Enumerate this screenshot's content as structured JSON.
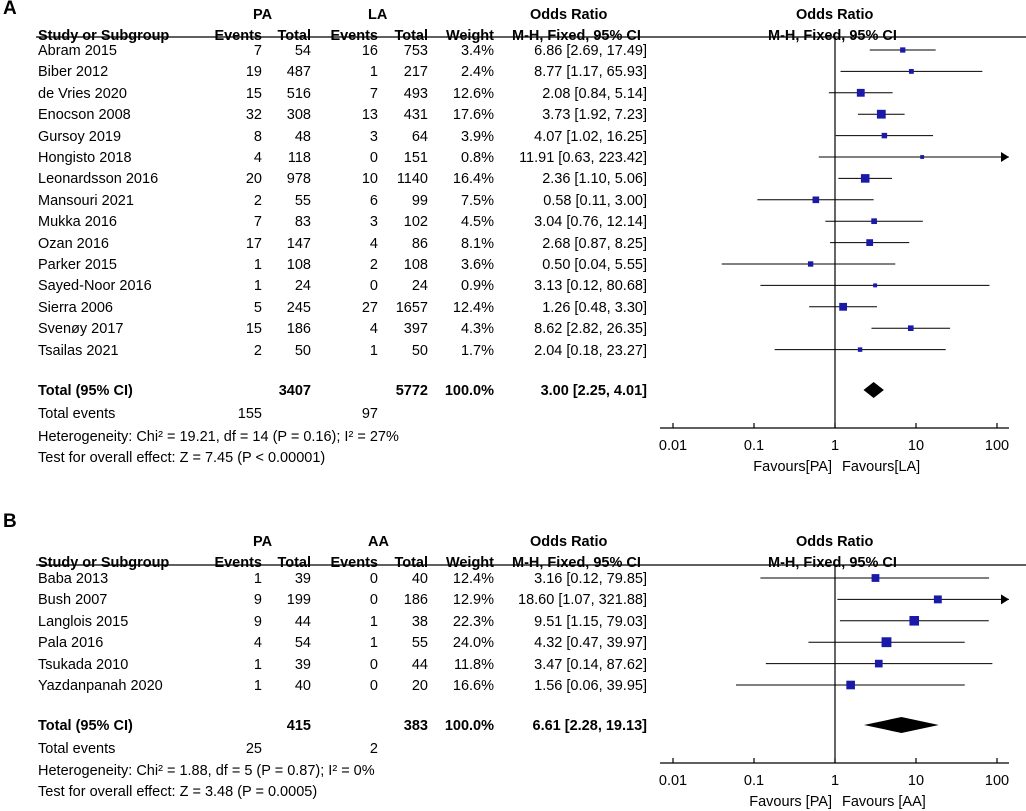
{
  "chart_data": [
    {
      "type": "forest",
      "panel": "A",
      "group1": "PA",
      "group2": "LA",
      "headers": {
        "study": "Study or Subgroup",
        "events": "Events",
        "total": "Total",
        "weight": "Weight",
        "or_title": "Odds Ratio",
        "or_method": "M-H, Fixed, 95% CI",
        "plot_title": "Odds Ratio",
        "plot_method": "M-H, Fixed, 95% CI"
      },
      "studies": [
        {
          "name": "Abram 2015",
          "e1": "7",
          "n1": "54",
          "e2": "16",
          "n2": "753",
          "weight": "3.4%",
          "or_text": "6.86 [2.69, 17.49]",
          "or": 6.86,
          "lo": 2.69,
          "hi": 17.49,
          "w": 3.4
        },
        {
          "name": "Biber 2012",
          "e1": "19",
          "n1": "487",
          "e2": "1",
          "n2": "217",
          "weight": "2.4%",
          "or_text": "8.77 [1.17, 65.93]",
          "or": 8.77,
          "lo": 1.17,
          "hi": 65.93,
          "w": 2.4
        },
        {
          "name": "de Vries 2020",
          "e1": "15",
          "n1": "516",
          "e2": "7",
          "n2": "493",
          "weight": "12.6%",
          "or_text": "2.08 [0.84, 5.14]",
          "or": 2.08,
          "lo": 0.84,
          "hi": 5.14,
          "w": 12.6
        },
        {
          "name": "Enocson 2008",
          "e1": "32",
          "n1": "308",
          "e2": "13",
          "n2": "431",
          "weight": "17.6%",
          "or_text": "3.73 [1.92, 7.23]",
          "or": 3.73,
          "lo": 1.92,
          "hi": 7.23,
          "w": 17.6
        },
        {
          "name": "Gursoy 2019",
          "e1": "8",
          "n1": "48",
          "e2": "3",
          "n2": "64",
          "weight": "3.9%",
          "or_text": "4.07 [1.02, 16.25]",
          "or": 4.07,
          "lo": 1.02,
          "hi": 16.25,
          "w": 3.9
        },
        {
          "name": "Hongisto 2018",
          "e1": "4",
          "n1": "118",
          "e2": "0",
          "n2": "151",
          "weight": "0.8%",
          "or_text": "11.91 [0.63, 223.42]",
          "or": 11.91,
          "lo": 0.63,
          "hi": 223.42,
          "w": 0.8
        },
        {
          "name": "Leonardsson 2016",
          "e1": "20",
          "n1": "978",
          "e2": "10",
          "n2": "1140",
          "weight": "16.4%",
          "or_text": "2.36 [1.10, 5.06]",
          "or": 2.36,
          "lo": 1.1,
          "hi": 5.06,
          "w": 16.4
        },
        {
          "name": "Mansouri 2021",
          "e1": "2",
          "n1": "55",
          "e2": "6",
          "n2": "99",
          "weight": "7.5%",
          "or_text": "0.58 [0.11, 3.00]",
          "or": 0.58,
          "lo": 0.11,
          "hi": 3.0,
          "w": 7.5
        },
        {
          "name": "Mukka 2016",
          "e1": "7",
          "n1": "83",
          "e2": "3",
          "n2": "102",
          "weight": "4.5%",
          "or_text": "3.04 [0.76, 12.14]",
          "or": 3.04,
          "lo": 0.76,
          "hi": 12.14,
          "w": 4.5
        },
        {
          "name": "Ozan 2016",
          "e1": "17",
          "n1": "147",
          "e2": "4",
          "n2": "86",
          "weight": "8.1%",
          "or_text": "2.68 [0.87, 8.25]",
          "or": 2.68,
          "lo": 0.87,
          "hi": 8.25,
          "w": 8.1
        },
        {
          "name": "Parker 2015",
          "e1": "1",
          "n1": "108",
          "e2": "2",
          "n2": "108",
          "weight": "3.6%",
          "or_text": "0.50 [0.04, 5.55]",
          "or": 0.5,
          "lo": 0.04,
          "hi": 5.55,
          "w": 3.6
        },
        {
          "name": "Sayed-Noor 2016",
          "e1": "1",
          "n1": "24",
          "e2": "0",
          "n2": "24",
          "weight": "0.9%",
          "or_text": "3.13 [0.12, 80.68]",
          "or": 3.13,
          "lo": 0.12,
          "hi": 80.68,
          "w": 0.9
        },
        {
          "name": "Sierra 2006",
          "e1": "5",
          "n1": "245",
          "e2": "27",
          "n2": "1657",
          "weight": "12.4%",
          "or_text": "1.26 [0.48, 3.30]",
          "or": 1.26,
          "lo": 0.48,
          "hi": 3.3,
          "w": 12.4
        },
        {
          "name": "Svenøy 2017",
          "e1": "15",
          "n1": "186",
          "e2": "4",
          "n2": "397",
          "weight": "4.3%",
          "or_text": "8.62 [2.82, 26.35]",
          "or": 8.62,
          "lo": 2.82,
          "hi": 26.35,
          "w": 4.3
        },
        {
          "name": "Tsailas 2021",
          "e1": "2",
          "n1": "50",
          "e2": "1",
          "n2": "50",
          "weight": "1.7%",
          "or_text": "2.04 [0.18, 23.27]",
          "or": 2.04,
          "lo": 0.18,
          "hi": 23.27,
          "w": 1.7
        }
      ],
      "total": {
        "label": "Total (95% CI)",
        "n1": "3407",
        "n2": "5772",
        "weight": "100.0%",
        "or_text": "3.00 [2.25, 4.01]",
        "or": 3.0,
        "lo": 2.25,
        "hi": 4.01
      },
      "total_events": {
        "label": "Total events",
        "e1": "155",
        "e2": "97"
      },
      "heterogeneity": "Heterogeneity: Chi² = 19.21, df = 14 (P = 0.16); I² = 27%",
      "overall_effect": "Test for overall effect: Z = 7.45 (P < 0.00001)",
      "axis": {
        "ticks": [
          0.01,
          0.1,
          1,
          10,
          100
        ],
        "tick_labels": [
          "0.01",
          "0.1",
          "1",
          "10",
          "100"
        ],
        "min": 0.01,
        "max": 100
      },
      "favours_left": "Favours[PA]",
      "favours_right": "Favours[LA]"
    },
    {
      "type": "forest",
      "panel": "B",
      "group1": "PA",
      "group2": "AA",
      "headers": {
        "study": "Study or Subgroup",
        "events": "Events",
        "total": "Total",
        "weight": "Weight",
        "or_title": "Odds Ratio",
        "or_method": "M-H, Fixed, 95% CI",
        "plot_title": "Odds Ratio",
        "plot_method": "M-H, Fixed, 95% CI"
      },
      "studies": [
        {
          "name": "Baba 2013",
          "e1": "1",
          "n1": "39",
          "e2": "0",
          "n2": "40",
          "weight": "12.4%",
          "or_text": "3.16 [0.12, 79.85]",
          "or": 3.16,
          "lo": 0.12,
          "hi": 79.85,
          "w": 12.4
        },
        {
          "name": "Bush 2007",
          "e1": "9",
          "n1": "199",
          "e2": "0",
          "n2": "186",
          "weight": "12.9%",
          "or_text": "18.60 [1.07, 321.88]",
          "or": 18.6,
          "lo": 1.07,
          "hi": 321.88,
          "w": 12.9
        },
        {
          "name": "Langlois 2015",
          "e1": "9",
          "n1": "44",
          "e2": "1",
          "n2": "38",
          "weight": "22.3%",
          "or_text": "9.51 [1.15, 79.03]",
          "or": 9.51,
          "lo": 1.15,
          "hi": 79.03,
          "w": 22.3
        },
        {
          "name": "Pala 2016",
          "e1": "4",
          "n1": "54",
          "e2": "1",
          "n2": "55",
          "weight": "24.0%",
          "or_text": "4.32 [0.47, 39.97]",
          "or": 4.32,
          "lo": 0.47,
          "hi": 39.97,
          "w": 24.0
        },
        {
          "name": "Tsukada 2010",
          "e1": "1",
          "n1": "39",
          "e2": "0",
          "n2": "44",
          "weight": "11.8%",
          "or_text": "3.47 [0.14, 87.62]",
          "or": 3.47,
          "lo": 0.14,
          "hi": 87.62,
          "w": 11.8
        },
        {
          "name": "Yazdanpanah 2020",
          "e1": "1",
          "n1": "40",
          "e2": "0",
          "n2": "20",
          "weight": "16.6%",
          "or_text": "1.56 [0.06, 39.95]",
          "or": 1.56,
          "lo": 0.06,
          "hi": 39.95,
          "w": 16.6
        }
      ],
      "total": {
        "label": "Total (95% CI)",
        "n1": "415",
        "n2": "383",
        "weight": "100.0%",
        "or_text": "6.61 [2.28, 19.13]",
        "or": 6.61,
        "lo": 2.28,
        "hi": 19.13
      },
      "total_events": {
        "label": "Total events",
        "e1": "25",
        "e2": "2"
      },
      "heterogeneity": "Heterogeneity: Chi² = 1.88, df = 5 (P = 0.87); I² = 0%",
      "overall_effect": "Test for overall effect: Z = 3.48 (P = 0.0005)",
      "axis": {
        "ticks": [
          0.01,
          0.1,
          1,
          10,
          100
        ],
        "tick_labels": [
          "0.01",
          "0.1",
          "1",
          "10",
          "100"
        ],
        "min": 0.01,
        "max": 100
      },
      "favours_left": "Favours [PA]",
      "favours_right": "Favours [AA]"
    }
  ],
  "colors": {
    "marker": "#1a1aa8",
    "line": "#000000"
  }
}
